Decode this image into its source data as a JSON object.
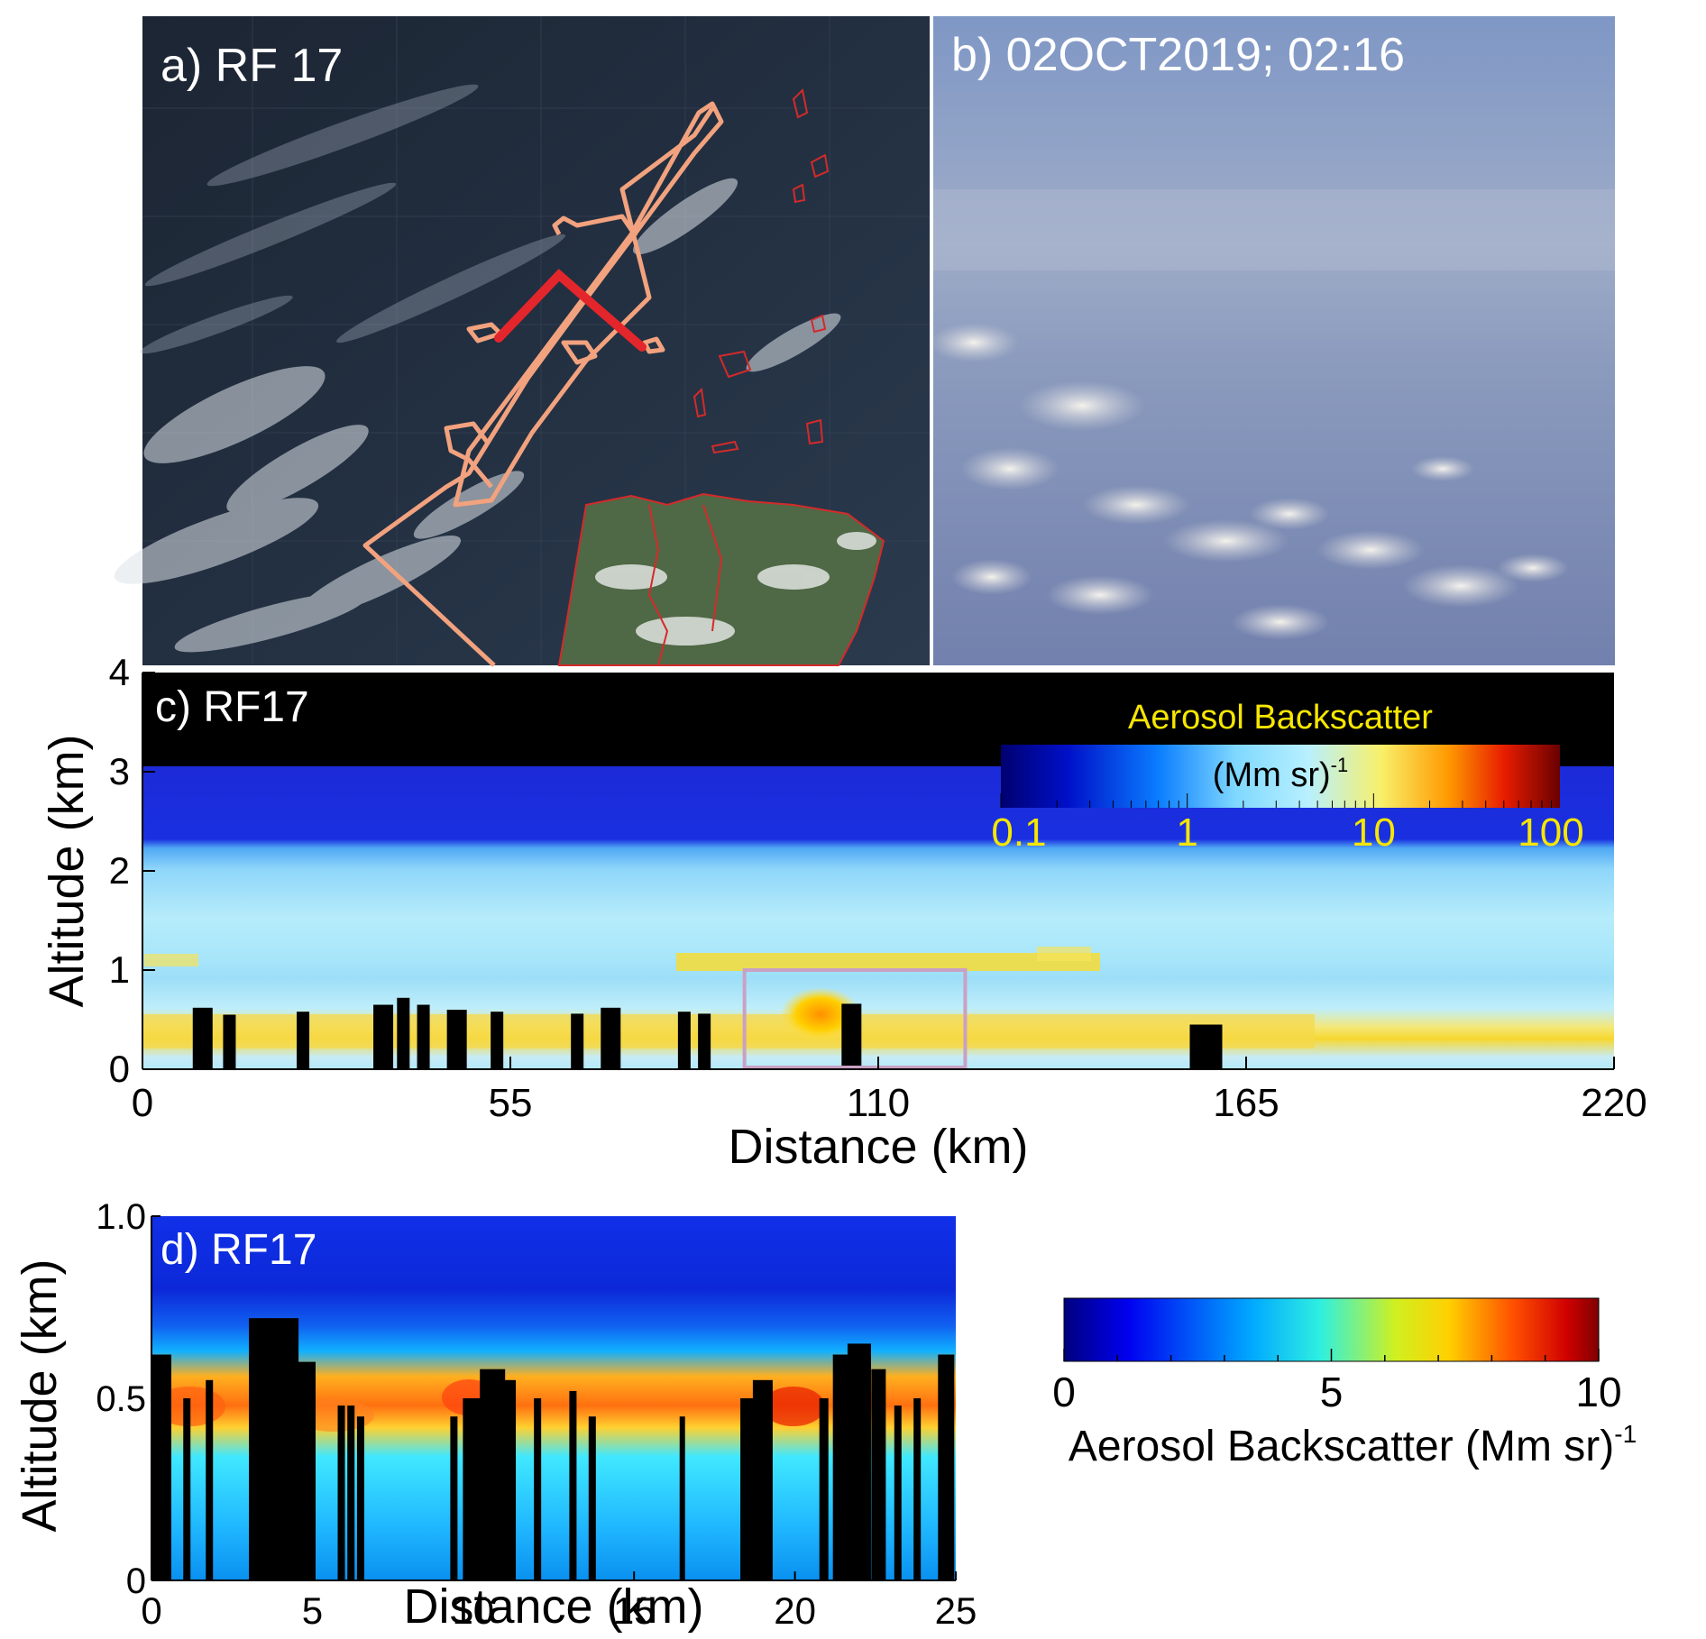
{
  "panels": {
    "a": {
      "label": "a) RF 17"
    },
    "b": {
      "label": "b) 02OCT2019; 02:16"
    },
    "c": {
      "label": "c) RF17",
      "xlabel": "Distance (km)",
      "ylabel": "Altitude (km)",
      "xticks": [
        "0",
        "55",
        "110",
        "165",
        "220"
      ],
      "yticks": [
        "0",
        "1",
        "2",
        "3",
        "4"
      ],
      "colorbar": {
        "title": "Aerosol Backscatter",
        "units": "(Mm sr)",
        "units_sup": "-1",
        "ticks": [
          "0.1",
          "1",
          "10",
          "100"
        ]
      }
    },
    "d": {
      "label": "d) RF17",
      "xlabel": "Distance (km)",
      "ylabel": "Altitude (km)",
      "xticks": [
        "0",
        "5",
        "10",
        "15",
        "20",
        "25"
      ],
      "yticks": [
        "0",
        "0.5",
        "1.0"
      ],
      "colorbar": {
        "label": "Aerosol Backscatter (Mm sr)",
        "label_sup": "-1",
        "ticks": [
          "0",
          "5",
          "10"
        ]
      }
    }
  },
  "colors": {
    "flight_track": "#f2a27e",
    "highlight_leg": "#e3262b",
    "coastline": "#d42a2a",
    "zoom_box": "#c9a1c4",
    "no_data": "#000000",
    "label_yellow": "#f7e600"
  },
  "chart_data": [
    {
      "type": "heatmap",
      "panel": "c",
      "xlim": [
        0,
        220
      ],
      "ylim": [
        0,
        4
      ],
      "color_scale": "log",
      "color_range": [
        0.1,
        100
      ],
      "layers": [
        {
          "alt_range": [
            2.3,
            3.1
          ],
          "value": 0.2
        },
        {
          "alt_range": [
            1.0,
            2.3
          ],
          "value": 2
        },
        {
          "alt_range": [
            0.2,
            0.6
          ],
          "value": 10
        }
      ],
      "elevated_layer": {
        "x_range": [
          80,
          145
        ],
        "altitude": 1.1,
        "value": 10
      },
      "cloud_columns_km": [
        9,
        13,
        24,
        36,
        39,
        42,
        47,
        53,
        65,
        70,
        81,
        84,
        106,
        159
      ],
      "zoom_box": {
        "x_range": [
          90,
          123
        ],
        "y_range": [
          0,
          1
        ]
      }
    },
    {
      "type": "heatmap",
      "panel": "d",
      "xlim": [
        0,
        25
      ],
      "ylim": [
        0,
        1
      ],
      "color_scale": "linear",
      "color_range": [
        0,
        10
      ],
      "layers": [
        {
          "alt_range": [
            0.7,
            1.0
          ],
          "value": 1
        },
        {
          "alt_range": [
            0.5,
            0.7
          ],
          "value": 5
        },
        {
          "alt_range": [
            0.4,
            0.5
          ],
          "value": 8
        },
        {
          "alt_range": [
            0.0,
            0.4
          ],
          "value": 4
        }
      ],
      "cloud_columns_km": [
        0.2,
        1.1,
        1.8,
        3.8,
        4.4,
        5.9,
        6.2,
        6.5,
        9.4,
        10.1,
        10.6,
        11.1,
        12.0,
        13.1,
        13.7,
        16.5,
        18.5,
        19.0,
        20.9,
        21.6,
        22.0,
        22.6,
        23.2,
        23.8,
        24.7
      ]
    }
  ]
}
